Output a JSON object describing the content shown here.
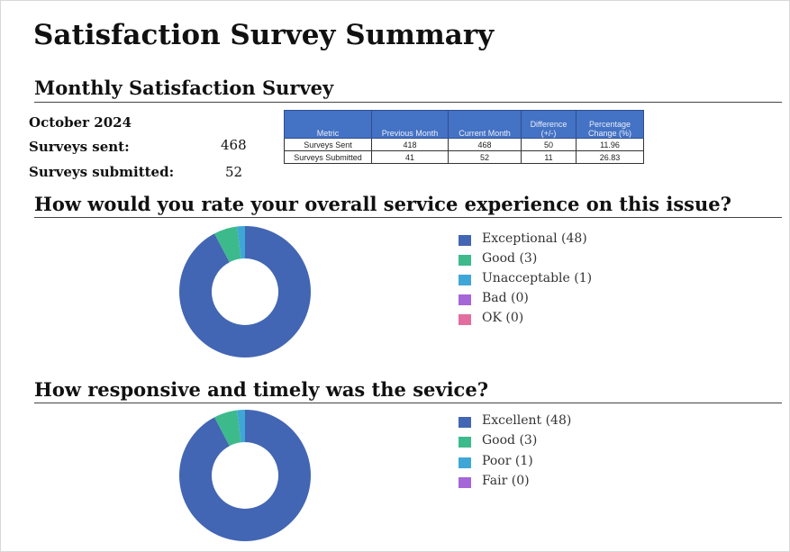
{
  "header": {
    "title": "Satisfaction Survey Summary"
  },
  "section": {
    "title": "Monthly Satisfaction Survey"
  },
  "stats": {
    "period": "October 2024",
    "items": [
      {
        "label": "Surveys sent:",
        "value": 468
      },
      {
        "label": "Surveys submitted:",
        "value": 52
      }
    ]
  },
  "table": {
    "headers": [
      "Metric",
      "Previous Month",
      "Current Month",
      "Difference (+/-)",
      "Percentage Change (%)"
    ],
    "rows": [
      [
        "Surveys Sent",
        418,
        468,
        50,
        11.96
      ],
      [
        "Surveys Submitted",
        41,
        52,
        11,
        26.83
      ]
    ]
  },
  "chart_data": [
    {
      "type": "donut",
      "title": "How would you rate your overall service experience on this issue?",
      "categories": [
        "Exceptional (48)",
        "Good (3)",
        "Unacceptable (1)",
        "Bad (0)",
        "OK (0)"
      ],
      "values": [
        48,
        3,
        1,
        0,
        0
      ],
      "colors": [
        "#4266b3",
        "#3dba8c",
        "#3fa7d8",
        "#a566d8",
        "#e46d9f"
      ]
    },
    {
      "type": "donut",
      "title": "How responsive and timely was the sevice?",
      "categories": [
        "Excellent (48)",
        "Good (3)",
        "Poor (1)",
        "Fair (0)"
      ],
      "values": [
        48,
        3,
        1,
        0
      ],
      "colors": [
        "#4266b3",
        "#3dba8c",
        "#3fa7d8",
        "#a566d8"
      ]
    }
  ]
}
